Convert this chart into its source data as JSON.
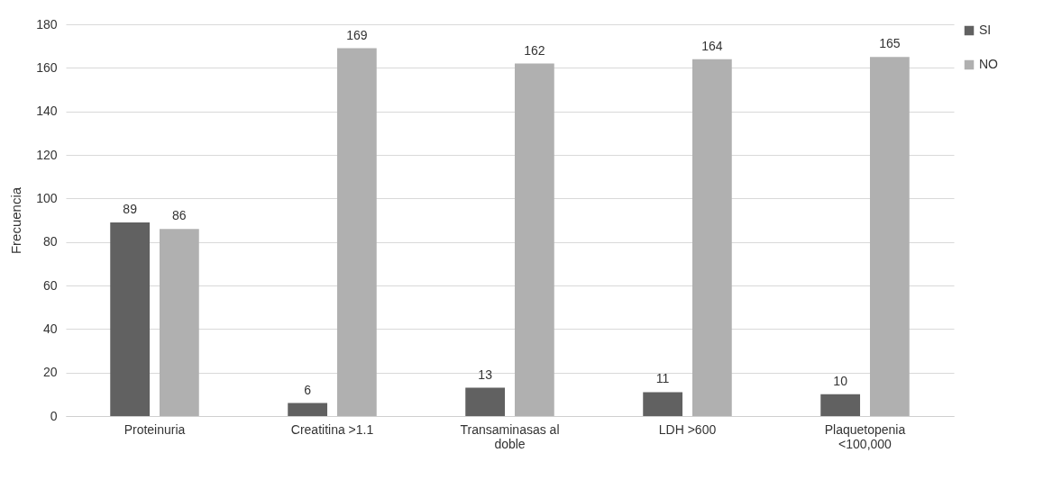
{
  "chart_data": {
    "type": "bar",
    "ylabel": "Frecuencia",
    "categories": [
      "Proteinuria",
      "Creatitina >1.1",
      "Transaminasas al doble",
      "LDH >600",
      "Plaquetopenia <100,000"
    ],
    "series": [
      {
        "name": "SI",
        "color": "#616161",
        "values": [
          89,
          6,
          13,
          11,
          10
        ]
      },
      {
        "name": "NO",
        "color": "#b0b0b0",
        "values": [
          86,
          169,
          162,
          164,
          165
        ]
      }
    ],
    "ylim": [
      0,
      180
    ],
    "yticks": [
      0,
      20,
      40,
      60,
      80,
      100,
      120,
      140,
      160,
      180
    ],
    "grid": "y",
    "legend": "right",
    "data_labels": true
  }
}
